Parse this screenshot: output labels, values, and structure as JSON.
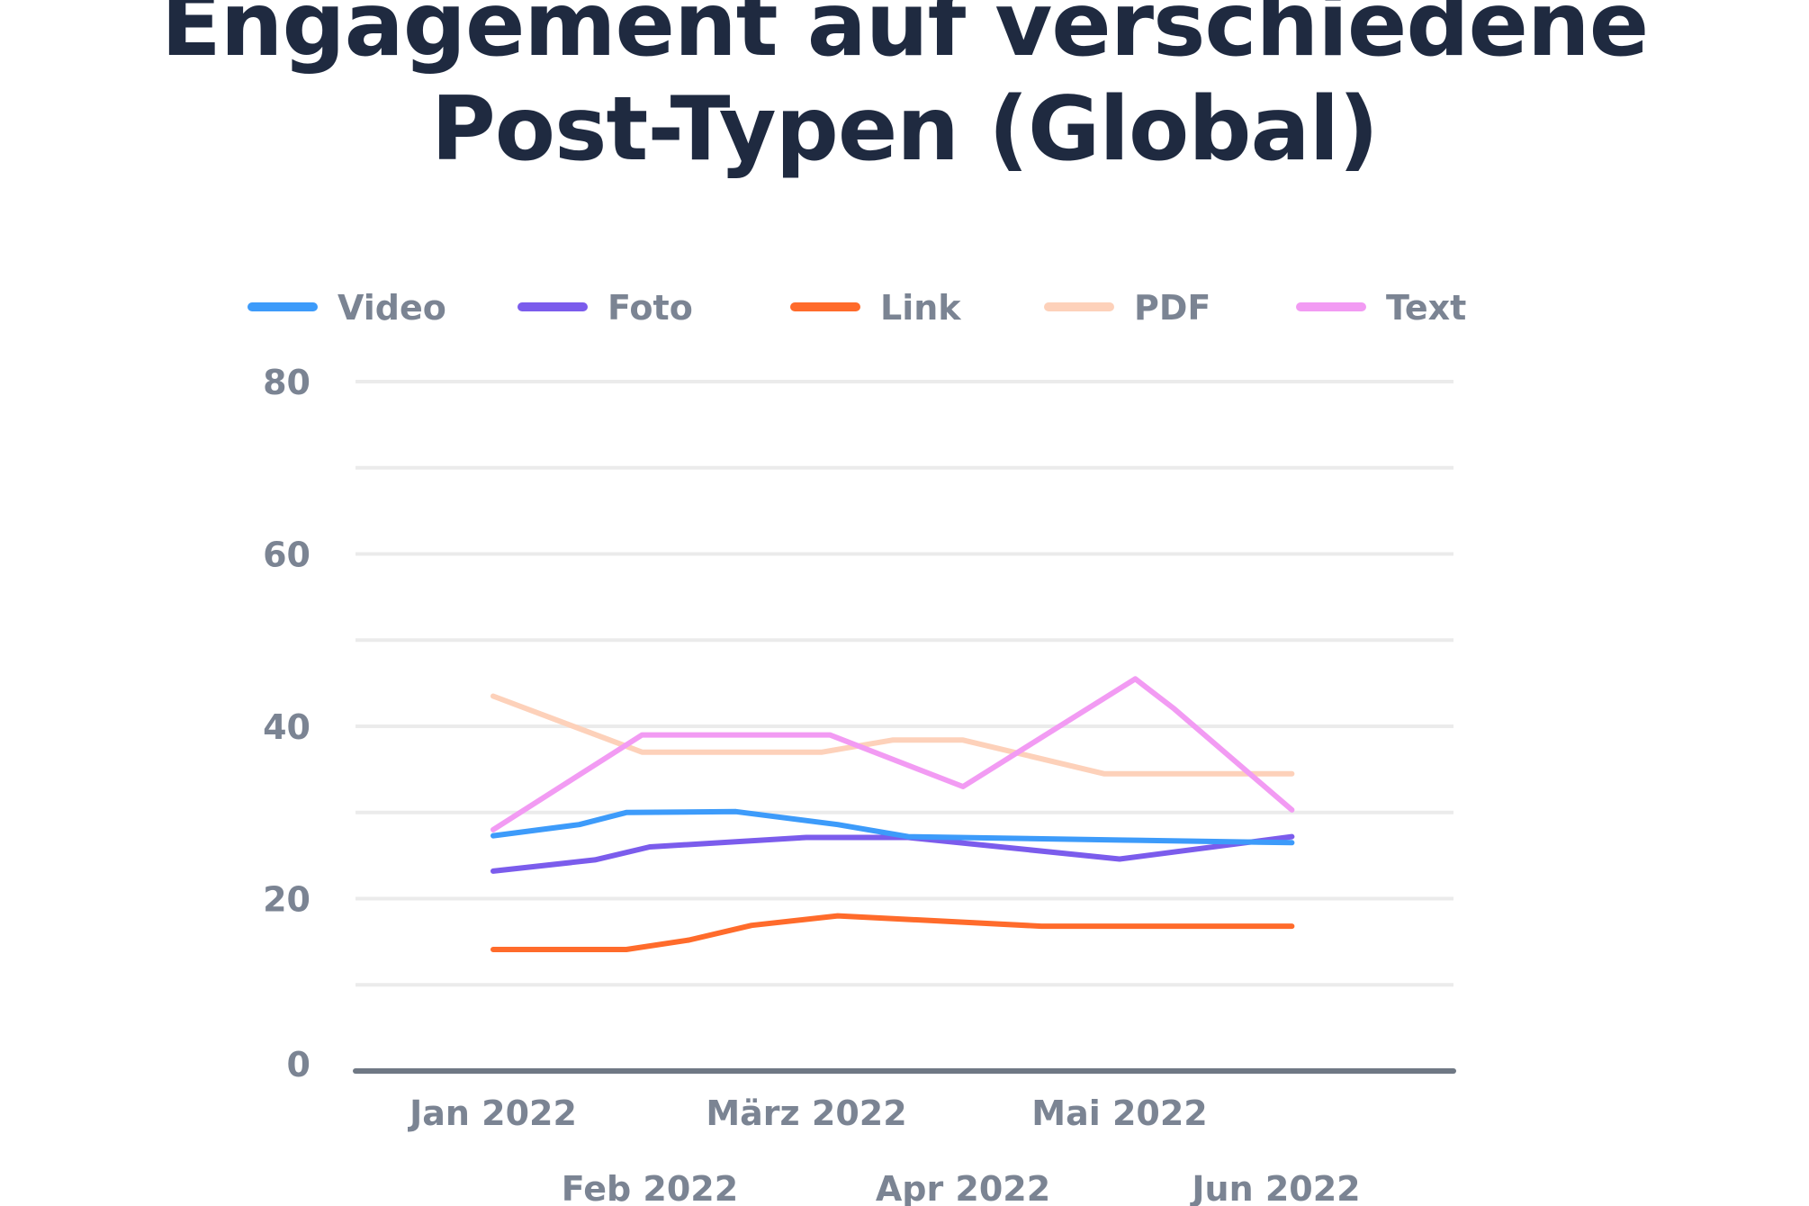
{
  "title_line1": "Engagement auf verschiedene",
  "title_line2": "Post-Typen (Global)",
  "chart_data": {
    "type": "line",
    "title": "Engagement auf verschiedene Post-Typen (Global)",
    "xlabel": "",
    "ylabel": "",
    "ylim": [
      0,
      80
    ],
    "yticks": [
      0,
      20,
      40,
      60,
      80
    ],
    "grid": true,
    "legend_position": "top",
    "x_tick_labels": [
      "Jan 2022",
      "Feb 2022",
      "März 2022",
      "Apr 2022",
      "Mai 2022",
      "Jun 2022"
    ],
    "series": [
      {
        "name": "Video",
        "color": "#3d9bfa",
        "points": [
          [
            0,
            27.3
          ],
          [
            0.55,
            28.6
          ],
          [
            0.85,
            30
          ],
          [
            1.55,
            30.1
          ],
          [
            2.2,
            28.6
          ],
          [
            2.65,
            27.2
          ],
          [
            4.0,
            26.8
          ],
          [
            5.1,
            26.5
          ]
        ]
      },
      {
        "name": "Foto",
        "color": "#7b5cec",
        "points": [
          [
            0,
            23.2
          ],
          [
            0.65,
            24.5
          ],
          [
            1.0,
            26
          ],
          [
            2.0,
            27.1
          ],
          [
            2.65,
            27.1
          ],
          [
            4.0,
            24.6
          ],
          [
            5.1,
            27.2
          ]
        ]
      },
      {
        "name": "Link",
        "color": "#ff6b2b",
        "points": [
          [
            0,
            14.1
          ],
          [
            0.85,
            14.1
          ],
          [
            1.25,
            15.2
          ],
          [
            1.65,
            16.9
          ],
          [
            2.2,
            18
          ],
          [
            3.5,
            16.8
          ],
          [
            5.1,
            16.8
          ]
        ]
      },
      {
        "name": "PDF",
        "color": "#fdd1ba",
        "points": [
          [
            0,
            43.5
          ],
          [
            0.95,
            37
          ],
          [
            2.1,
            37
          ],
          [
            2.55,
            38.4
          ],
          [
            3.0,
            38.4
          ],
          [
            3.9,
            34.5
          ],
          [
            5.1,
            34.5
          ]
        ]
      },
      {
        "name": "Text",
        "color": "#f29bf3",
        "points": [
          [
            0,
            28
          ],
          [
            0.95,
            39
          ],
          [
            2.15,
            39
          ],
          [
            3.0,
            33
          ],
          [
            4.1,
            45.5
          ],
          [
            4.35,
            42
          ],
          [
            5.1,
            30.3
          ]
        ]
      }
    ]
  }
}
